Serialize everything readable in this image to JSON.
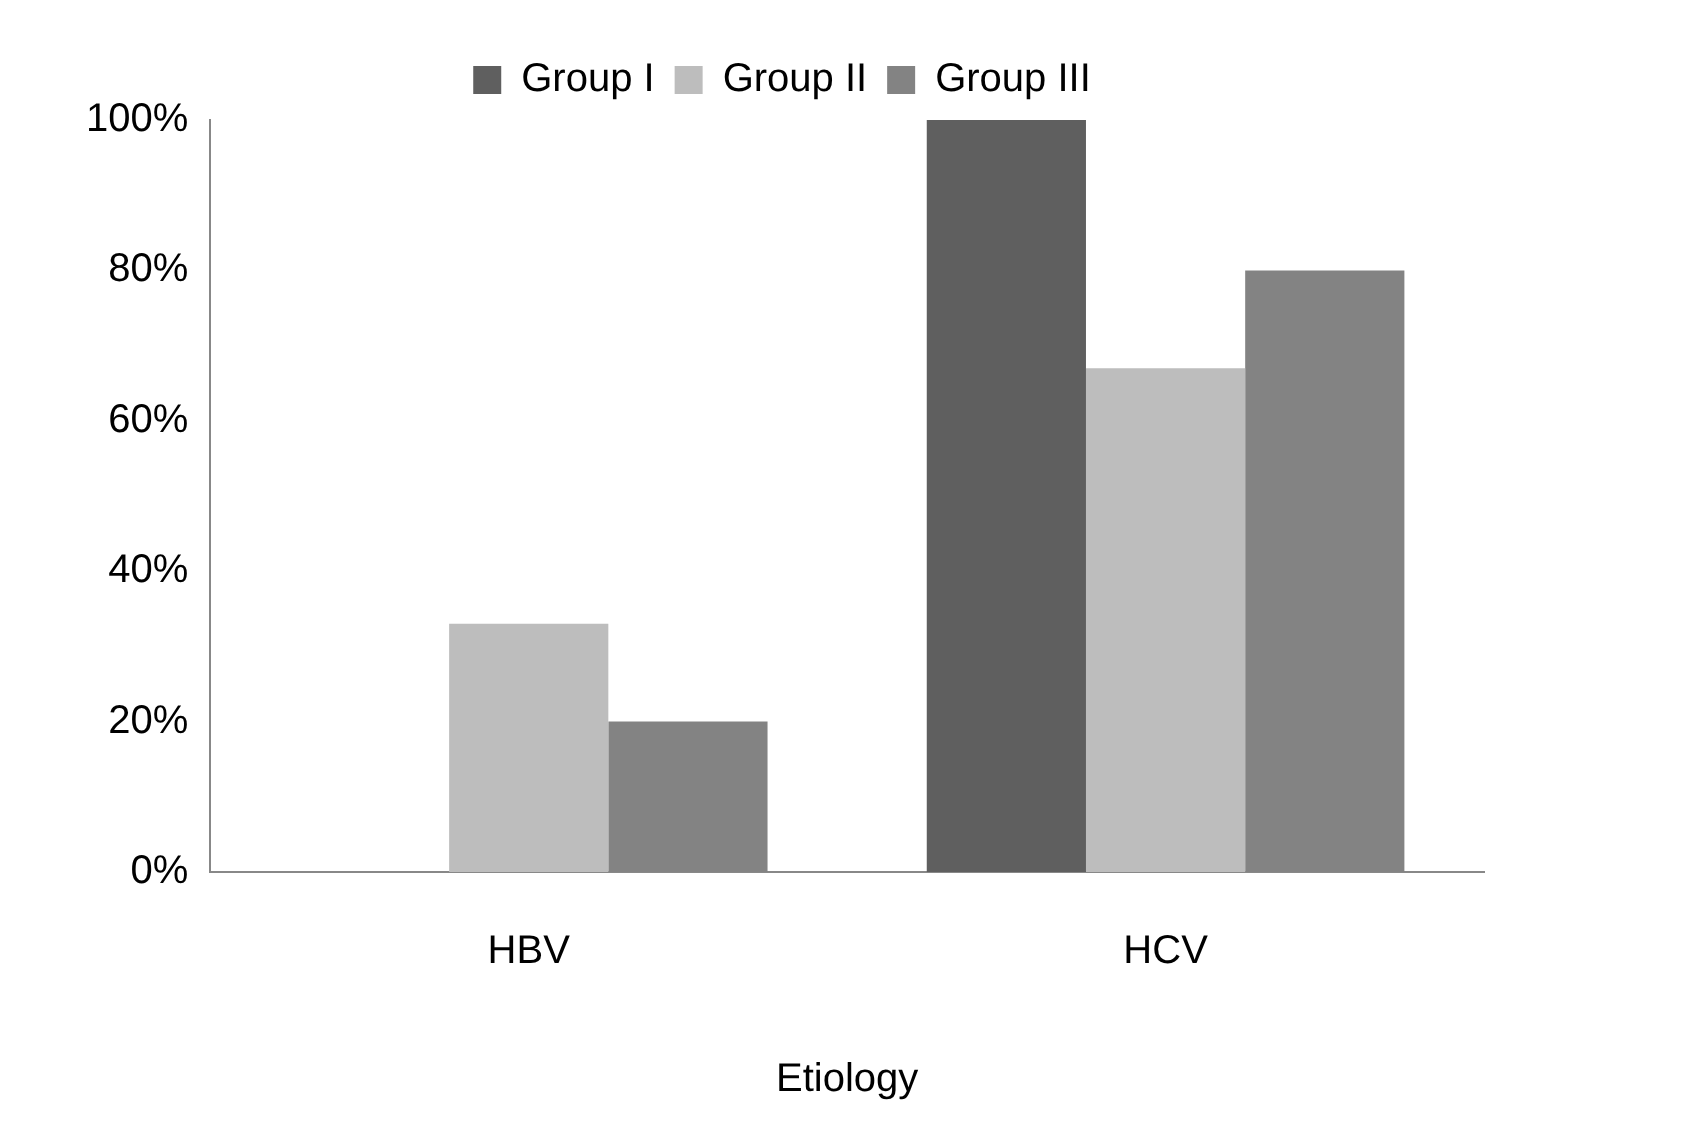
{
  "chart_data": {
    "type": "bar",
    "xlabel": "Etiology",
    "categories": [
      "HBV",
      "HCV"
    ],
    "series": [
      {
        "name": "Group I",
        "color": "#5f5f5f",
        "values": [
          0,
          100
        ]
      },
      {
        "name": "Group II",
        "color": "#bdbdbd",
        "values": [
          33,
          67
        ]
      },
      {
        "name": "Group III",
        "color": "#838383",
        "values": [
          20,
          80
        ]
      }
    ],
    "ylim": [
      0,
      100
    ],
    "yticks": [
      {
        "value": 0,
        "label": "0%"
      },
      {
        "value": 20,
        "label": "20%"
      },
      {
        "value": 40,
        "label": "40%"
      },
      {
        "value": 60,
        "label": "60%"
      },
      {
        "value": 80,
        "label": "80%"
      },
      {
        "value": 100,
        "label": "100%"
      }
    ],
    "grid": false,
    "legend": "top"
  }
}
